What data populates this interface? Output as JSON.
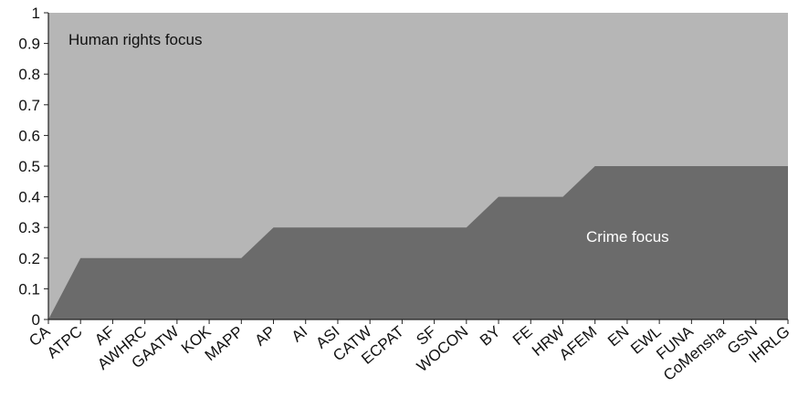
{
  "chart_data": {
    "type": "area",
    "categories": [
      "CA",
      "ATPC",
      "AF",
      "AWHRC",
      "GAATW",
      "KOK",
      "MAPP",
      "AP",
      "AI",
      "ASI",
      "CATW",
      "ECPAT",
      "SF",
      "WOCON",
      "BY",
      "FE",
      "HRW",
      "AFEM",
      "EN",
      "EWL",
      "FUNA",
      "CoMensha",
      "GSN",
      "IHRLG"
    ],
    "series": [
      {
        "name": "Crime focus",
        "values": [
          0,
          0.2,
          0.2,
          0.2,
          0.2,
          0.2,
          0.2,
          0.3,
          0.3,
          0.3,
          0.3,
          0.3,
          0.3,
          0.3,
          0.4,
          0.4,
          0.4,
          0.5,
          0.5,
          0.5,
          0.5,
          0.5,
          0.5,
          0.5
        ]
      }
    ],
    "ylim": [
      0,
      1
    ],
    "yticks": [
      "0",
      "0.1",
      "0.2",
      "0.3",
      "0.4",
      "0.5",
      "0.6",
      "0.7",
      "0.8",
      "0.9",
      "1"
    ],
    "annotations": {
      "upper": "Human rights focus",
      "lower": "Crime focus"
    },
    "grid": false,
    "xlabel": "",
    "ylabel": "",
    "title": ""
  },
  "colors": {
    "upper_area": "#b6b6b6",
    "lower_area": "#6b6b6b",
    "upper_text": "#111111",
    "lower_text": "#ffffff",
    "axis": "#222222"
  }
}
